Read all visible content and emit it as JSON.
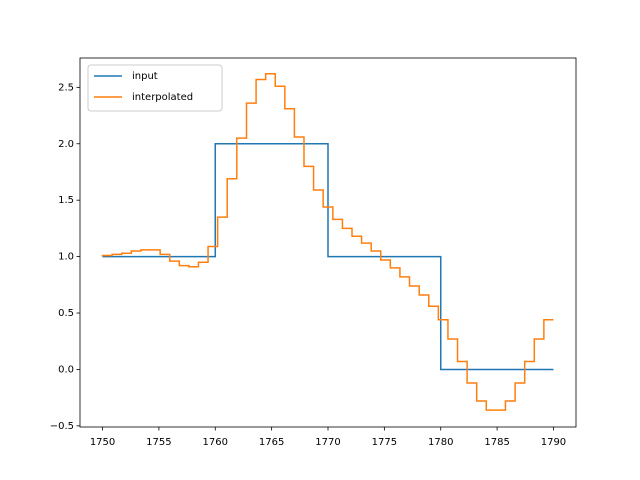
{
  "chart_data": {
    "type": "step",
    "series": [
      {
        "name": "input",
        "color": "#1f77b4",
        "step": "post",
        "x": [
          1750,
          1760,
          1770,
          1780,
          1790
        ],
        "values": [
          1,
          2,
          1,
          0,
          0
        ]
      },
      {
        "name": "interpolated",
        "color": "#ff7f0e",
        "step": "pre",
        "x": [
          1750.0,
          1750.85,
          1751.7,
          1752.55,
          1753.4,
          1754.26,
          1755.11,
          1755.96,
          1756.81,
          1757.66,
          1758.51,
          1759.36,
          1760.21,
          1761.06,
          1761.91,
          1762.77,
          1763.62,
          1764.47,
          1765.32,
          1766.17,
          1767.02,
          1767.87,
          1768.72,
          1769.57,
          1770.43,
          1771.28,
          1772.13,
          1772.98,
          1773.83,
          1774.68,
          1775.53,
          1776.38,
          1777.23,
          1778.09,
          1778.94,
          1779.79,
          1780.64,
          1781.49,
          1782.34,
          1783.19,
          1784.04,
          1784.89,
          1785.74,
          1786.6,
          1787.45,
          1788.3,
          1789.15,
          1790.0
        ],
        "values": [
          1.0,
          1.01,
          1.02,
          1.03,
          1.05,
          1.06,
          1.06,
          1.02,
          0.96,
          0.92,
          0.91,
          0.95,
          1.09,
          1.35,
          1.69,
          2.05,
          2.36,
          2.57,
          2.62,
          2.51,
          2.31,
          2.06,
          1.8,
          1.59,
          1.44,
          1.33,
          1.25,
          1.18,
          1.12,
          1.05,
          0.97,
          0.9,
          0.82,
          0.74,
          0.66,
          0.56,
          0.44,
          0.27,
          0.07,
          -0.12,
          -0.28,
          -0.36,
          -0.36,
          -0.28,
          -0.12,
          0.07,
          0.27,
          0.44
        ]
      }
    ],
    "xlim": [
      1748,
      1792
    ],
    "xticks": [
      1750,
      1755,
      1760,
      1765,
      1770,
      1775,
      1780,
      1785,
      1790
    ],
    "ylim": [
      -0.51,
      2.76
    ],
    "yticks": [
      {
        "value": -0.5,
        "label": "−0.5"
      },
      {
        "value": 0,
        "label": "0.0"
      },
      {
        "value": 0.5,
        "label": "0.5"
      },
      {
        "value": 1,
        "label": "1.0"
      },
      {
        "value": 1.5,
        "label": "1.5"
      },
      {
        "value": 2,
        "label": "2.0"
      },
      {
        "value": 2.5,
        "label": "2.5"
      }
    ],
    "legend": "upper left"
  }
}
